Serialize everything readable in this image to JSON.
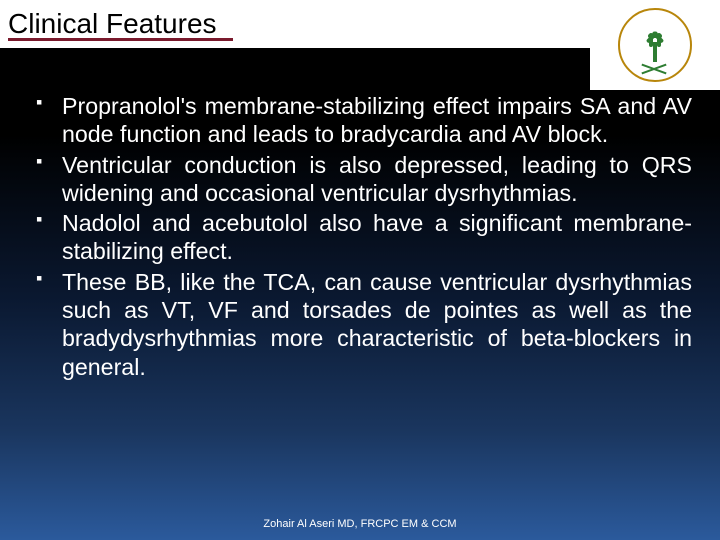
{
  "slide": {
    "title": "Clinical Features",
    "title_color": "#000000",
    "title_fontsize": 28,
    "underline_color": "#7a1a2d",
    "background_gradient": [
      "#000000",
      "#000000",
      "#0a1830",
      "#1a365f",
      "#2b5a9c"
    ],
    "text_color": "#ffffff",
    "body_fontsize": 23.2,
    "line_height": 1.22,
    "text_align": "justify",
    "bullet_marker": "▪",
    "bullets": [
      "Propranolol's membrane-stabilizing effect impairs SA and AV node function and leads to bradycardia and AV block.",
      "Ventricular conduction is also depressed, leading to QRS widening and occasional ventricular dysrhythmias.",
      "Nadolol and acebutolol also have a significant membrane-stabilizing effect.",
      "These BB, like the TCA, can cause ventricular dysrhythmias such as VT, VF and torsades de pointes as well as the bradydysrhythmias more characteristic of beta-blockers in general."
    ],
    "footer": "Zohair Al Aseri MD, FRCPC EM & CCM",
    "footer_fontsize": 11,
    "logo": {
      "ring_color": "#b8860b",
      "emblem_color": "#2e7d32",
      "background": "#ffffff"
    }
  }
}
